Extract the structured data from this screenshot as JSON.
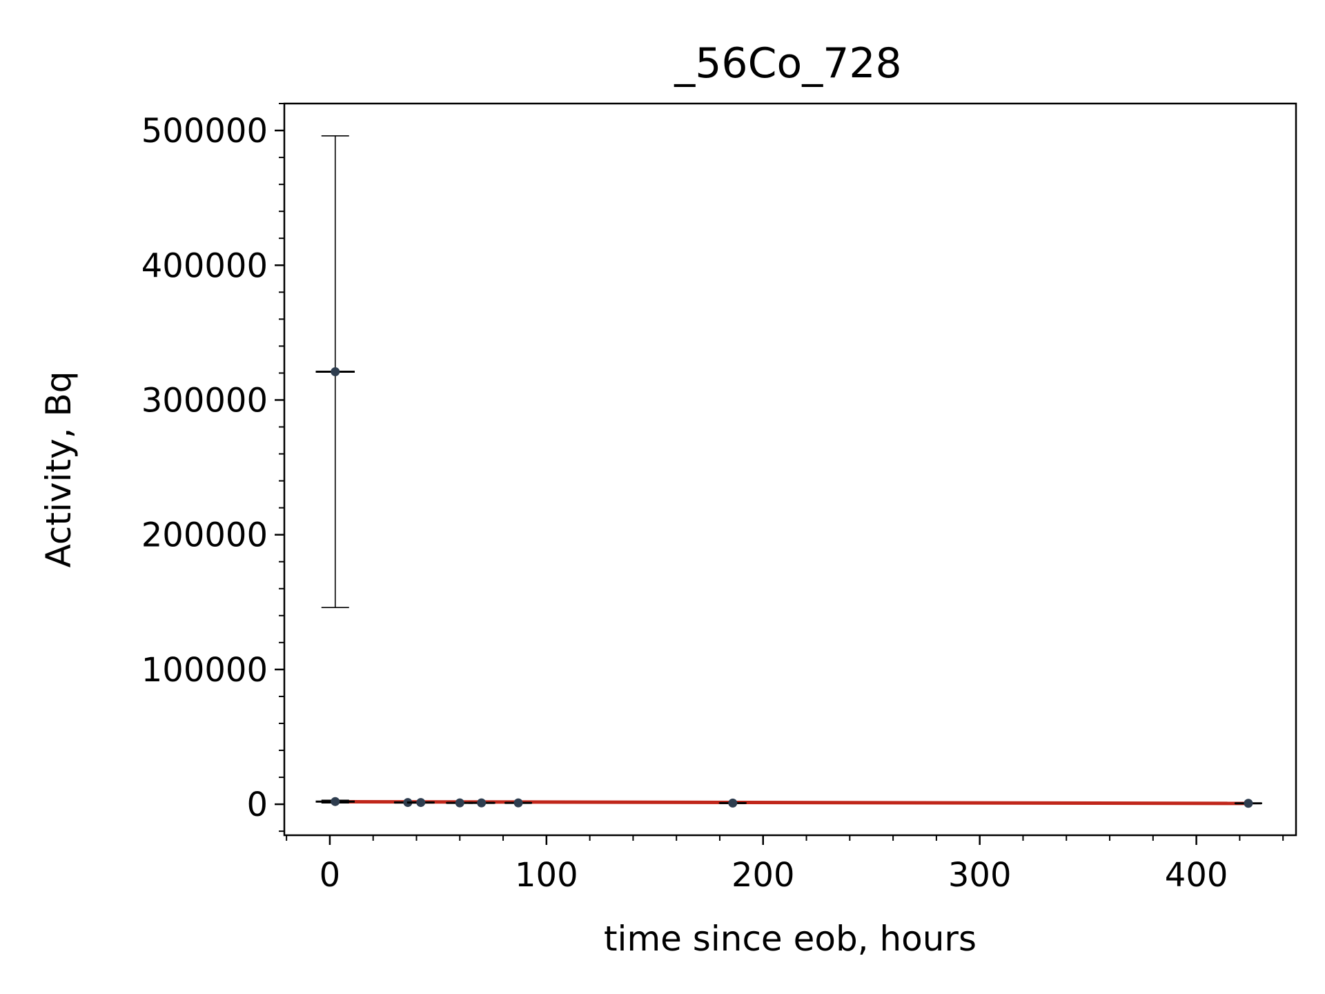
{
  "chart_data": {
    "type": "scatter",
    "title": "_56Co_728",
    "xlabel": "time since eob, hours",
    "ylabel": "Activity, Bq",
    "xlim": [
      -21,
      446
    ],
    "ylim": [
      -23000,
      520000
    ],
    "xticks": [
      0,
      100,
      200,
      300,
      400
    ],
    "yticks": [
      0,
      100000,
      200000,
      300000,
      400000,
      500000
    ],
    "xtick_labels": [
      "0",
      "100",
      "200",
      "300",
      "400"
    ],
    "ytick_labels": [
      "0",
      "100000",
      "200000",
      "300000",
      "400000",
      "500000"
    ],
    "x_minor_step": 20,
    "y_minor_step": 20000,
    "grid": false,
    "colors": {
      "points": "#2e3d4f",
      "fit_line": "#c0261a",
      "error_bars": "#000000"
    },
    "points": [
      {
        "x": 2.5,
        "y": 321000,
        "y_low": 146000,
        "y_high": 496000,
        "x_err": 9
      },
      {
        "x": 2.5,
        "y": 2000,
        "y_low": 1000,
        "y_high": 3000,
        "x_err": 9
      },
      {
        "x": 36,
        "y": 1300,
        "y_low": 1000,
        "y_high": 1600,
        "x_err": 6
      },
      {
        "x": 42,
        "y": 1300,
        "y_low": 1000,
        "y_high": 1600,
        "x_err": 6
      },
      {
        "x": 60,
        "y": 1000,
        "y_low": 800,
        "y_high": 1200,
        "x_err": 6
      },
      {
        "x": 70,
        "y": 1000,
        "y_low": 800,
        "y_high": 1200,
        "x_err": 6
      },
      {
        "x": 87,
        "y": 1000,
        "y_low": 800,
        "y_high": 1200,
        "x_err": 6
      },
      {
        "x": 186,
        "y": 900,
        "y_low": 700,
        "y_high": 1100,
        "x_err": 6
      },
      {
        "x": 424,
        "y": 700,
        "y_low": 500,
        "y_high": 900,
        "x_err": 6
      }
    ],
    "fit_line": {
      "x": [
        0,
        424
      ],
      "y": [
        1900,
        600
      ]
    }
  }
}
